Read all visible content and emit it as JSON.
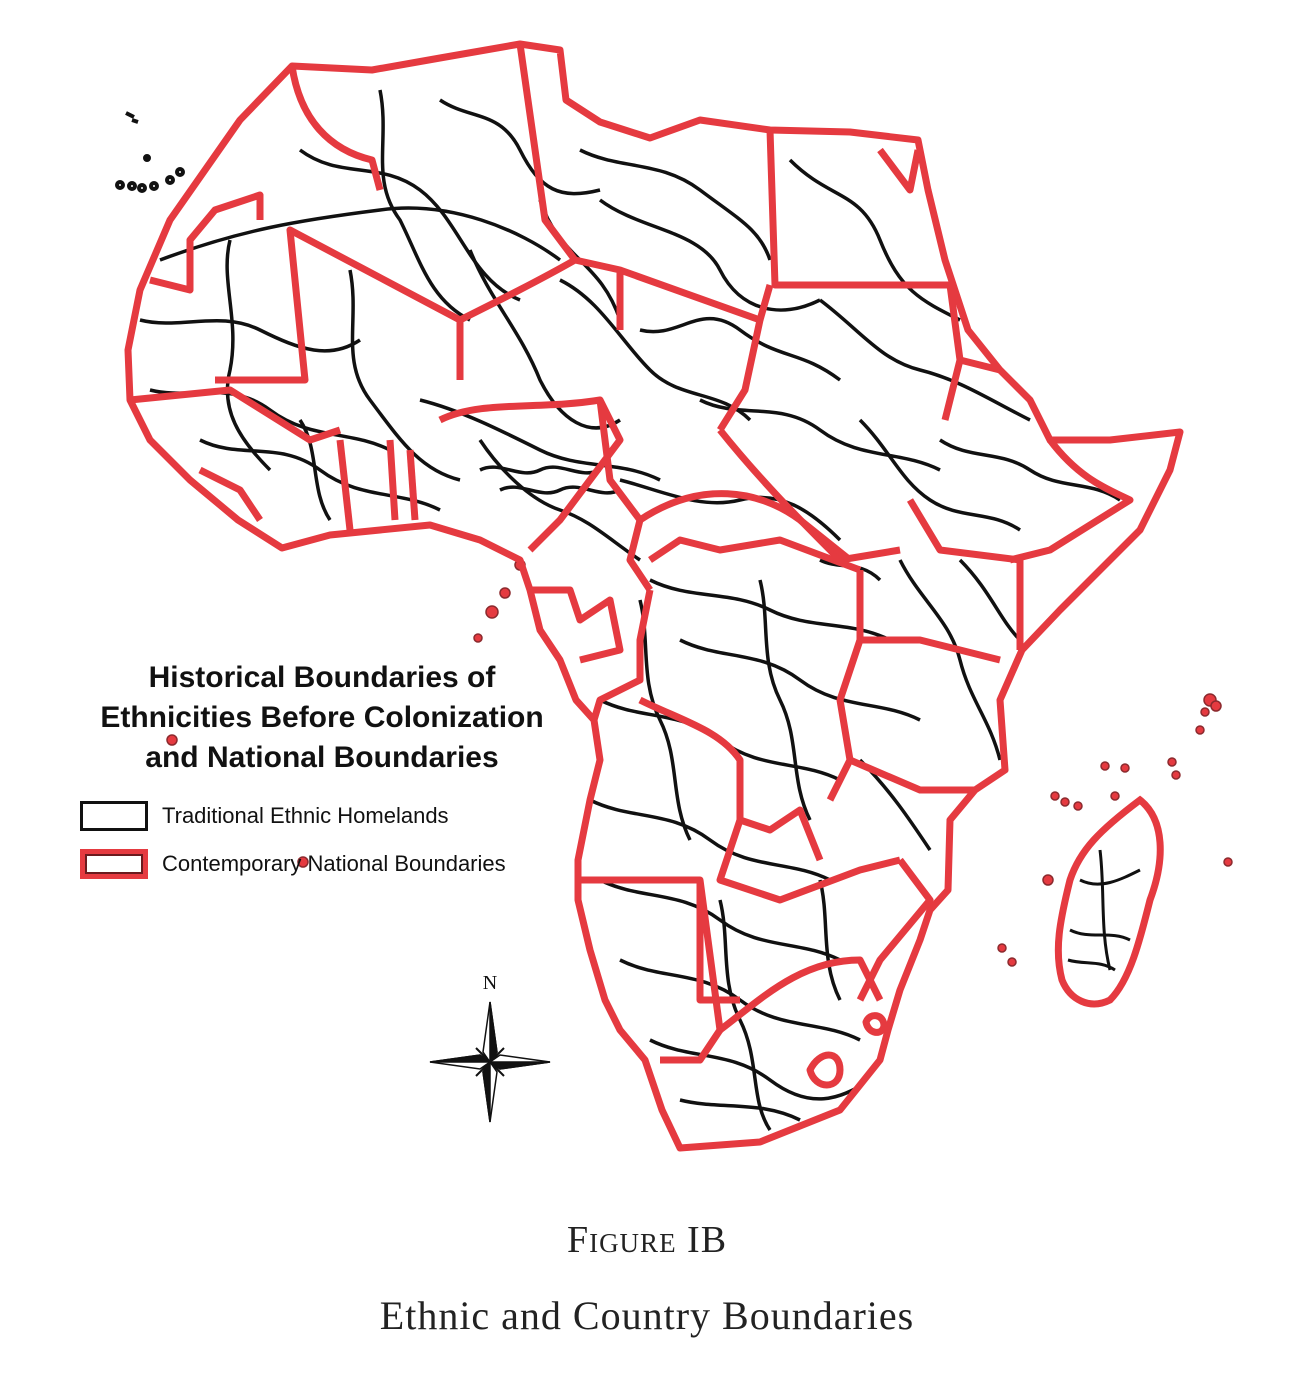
{
  "legend": {
    "title_lines": [
      "Historical Boundaries of",
      "Ethnicities Before Colonization",
      "and National Boundaries"
    ],
    "items": [
      {
        "label": "Traditional Ethnic Homelands",
        "color": "#111111"
      },
      {
        "label": "Contemporary National Boundaries",
        "color": "#e53a40"
      }
    ]
  },
  "compass": {
    "north_label": "N",
    "icon": "compass-rose-icon"
  },
  "caption": {
    "figure_label": "Figure IB",
    "title": "Ethnic and Country Boundaries"
  },
  "colors": {
    "ethnic_line": "#111111",
    "national_line": "#e53a40",
    "background": "#ffffff"
  }
}
